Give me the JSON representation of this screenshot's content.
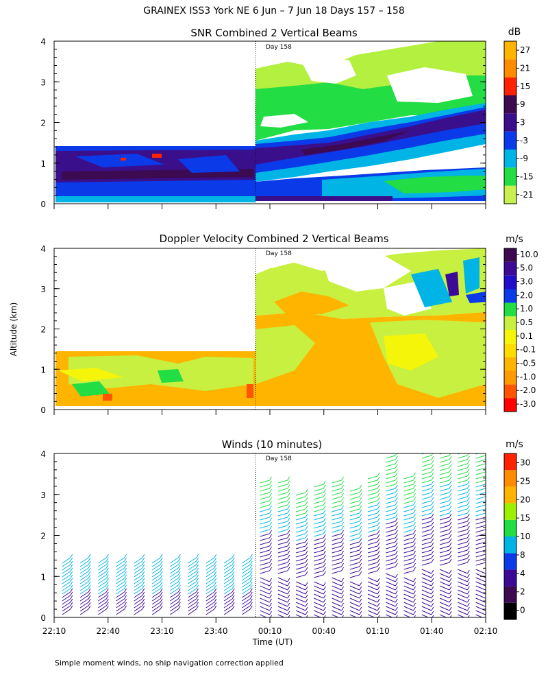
{
  "page_title": "GRAINEX ISS3 York NE   6 Jun –  7 Jun 18 Days 157 – 158",
  "footnote": "Simple moment winds, no ship navigation correction applied",
  "colors": {
    "snr_bg": "#0b3ae8",
    "snr_mid": "#3a0f8c",
    "snr_cyan": "#00b4e6",
    "snr_green": "#22dd44",
    "snr_lime": "#b4f040",
    "vel_orange": "#ffb400",
    "vel_lime": "#c8f040",
    "vel_yellow": "#f5f50a"
  },
  "chart_data": [
    {
      "type": "heatmap",
      "title": "SNR Combined 2 Vertical Beams",
      "ylabel": "",
      "xlabel": "",
      "x_ticks": [
        "22:10",
        "22:40",
        "23:10",
        "23:40",
        "00:10",
        "00:40",
        "01:10",
        "01:40",
        "02:10"
      ],
      "y_ticks": [
        "0",
        "1",
        "2",
        "3",
        "4"
      ],
      "ylim": [
        0,
        4
      ],
      "day_marker": "Day 158",
      "colorbar": {
        "unit": "dB",
        "labels": [
          "27",
          "21",
          "15",
          "9",
          "3",
          "-3",
          "-9",
          "-15",
          "-21"
        ],
        "colors": [
          "#c8f050",
          "#22dd44",
          "#00b4e6",
          "#0b3ae8",
          "#3a0f8c",
          "#3c0a50",
          "#ff2200",
          "#ff8c00",
          "#ffb400"
        ]
      }
    },
    {
      "type": "heatmap",
      "title": "Doppler Velocity Combined 2 Vertical Beams",
      "ylabel": "Altitude (km)",
      "xlabel": "",
      "x_ticks": [
        "22:10",
        "22:40",
        "23:10",
        "23:40",
        "00:10",
        "00:40",
        "01:10",
        "01:40",
        "02:10"
      ],
      "y_ticks": [
        "0",
        "1",
        "2",
        "3",
        "4"
      ],
      "ylim": [
        0,
        4
      ],
      "day_marker": "Day 158",
      "colorbar": {
        "unit": "m/s",
        "labels": [
          "10.0",
          "5.0",
          "3.0",
          "2.0",
          "1.0",
          "0.5",
          "0.1",
          "-0.1",
          "-0.5",
          "-1.0",
          "-2.0",
          "-3.0"
        ],
        "colors": [
          "#ff0000",
          "#ff5500",
          "#ff9900",
          "#ffb400",
          "#ffdc00",
          "#f5f50a",
          "#c8f040",
          "#22dd44",
          "#0b3ae8",
          "#1e0fc8",
          "#3c0a96",
          "#3c0a50"
        ]
      }
    },
    {
      "type": "scatter",
      "title": "Winds (10 minutes)",
      "ylabel": "",
      "xlabel": "Time (UT)",
      "x_ticks": [
        "22:10",
        "22:40",
        "23:10",
        "23:40",
        "00:10",
        "00:40",
        "01:10",
        "01:40",
        "02:10"
      ],
      "y_ticks": [
        "0",
        "1",
        "2",
        "3",
        "4"
      ],
      "ylim": [
        0,
        4
      ],
      "day_marker": "Day 158",
      "colorbar": {
        "unit": "m/s",
        "labels": [
          "30",
          "25",
          "20",
          "15",
          "10",
          "8",
          "4",
          "2",
          "0"
        ],
        "colors": [
          "#000000",
          "#3c0a50",
          "#3c0a96",
          "#0b3ae8",
          "#00b4e6",
          "#22dd44",
          "#9cf000",
          "#ffb400",
          "#ff8c00",
          "#ff2200"
        ]
      },
      "profiles": [
        {
          "time": "22:10",
          "top_km": 1.4,
          "color": "#00b4e6"
        },
        {
          "time": "22:20",
          "top_km": 1.4,
          "color": "#00b4e6"
        },
        {
          "time": "22:30",
          "top_km": 1.4,
          "color": "#00b4e6"
        },
        {
          "time": "22:40",
          "top_km": 1.4,
          "color": "#00b4e6"
        },
        {
          "time": "22:50",
          "top_km": 1.4,
          "color": "#00b4e6"
        },
        {
          "time": "23:00",
          "top_km": 1.4,
          "color": "#00b4e6"
        },
        {
          "time": "23:10",
          "top_km": 1.4,
          "color": "#00b4e6"
        },
        {
          "time": "23:20",
          "top_km": 1.4,
          "color": "#00b4e6"
        },
        {
          "time": "23:30",
          "top_km": 1.4,
          "color": "#00b4e6"
        },
        {
          "time": "23:40",
          "top_km": 1.4,
          "color": "#00b4e6"
        },
        {
          "time": "23:50",
          "top_km": 1.4,
          "color": "#00b4e6"
        },
        {
          "time": "00:00",
          "top_km": 3.3,
          "color": "#3c0a96"
        },
        {
          "time": "00:10",
          "top_km": 3.3,
          "color": "#3c0a96"
        },
        {
          "time": "00:20",
          "top_km": 3.0,
          "color": "#3c0a96"
        },
        {
          "time": "00:30",
          "top_km": 3.2,
          "color": "#3c0a96"
        },
        {
          "time": "00:40",
          "top_km": 3.3,
          "color": "#3c0a96"
        },
        {
          "time": "00:50",
          "top_km": 3.1,
          "color": "#3c0a96"
        },
        {
          "time": "01:00",
          "top_km": 3.4,
          "color": "#3c0a96"
        },
        {
          "time": "01:10",
          "top_km": 3.9,
          "color": "#3c0a96"
        },
        {
          "time": "01:20",
          "top_km": 3.4,
          "color": "#3c0a96"
        },
        {
          "time": "01:30",
          "top_km": 4.0,
          "color": "#3c0a96"
        },
        {
          "time": "01:40",
          "top_km": 4.1,
          "color": "#3c0a96"
        },
        {
          "time": "01:50",
          "top_km": 4.0,
          "color": "#3c0a96"
        },
        {
          "time": "02:00",
          "top_km": 4.0,
          "color": "#3c0a96"
        }
      ]
    }
  ]
}
